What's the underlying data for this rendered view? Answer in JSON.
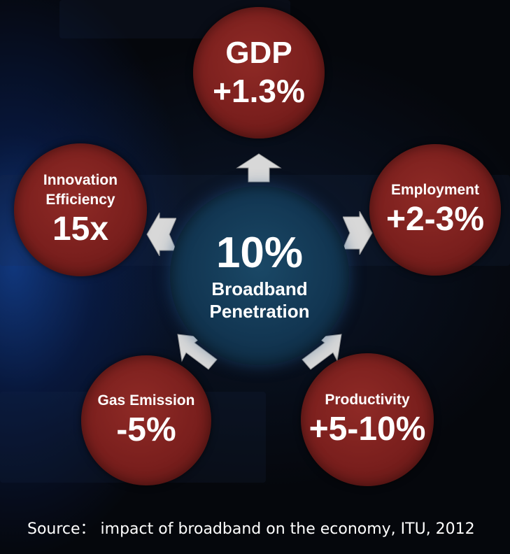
{
  "center": {
    "value": "10%",
    "label_line1": "Broadband",
    "label_line2": "Penetration"
  },
  "nodes": [
    {
      "key": "gdp",
      "label": "GDP",
      "value": "+1.3%"
    },
    {
      "key": "employment",
      "label": "Employment",
      "value": "+2-3%"
    },
    {
      "key": "productivity",
      "label": "Productivity",
      "value": "+5-10%"
    },
    {
      "key": "gas",
      "label": "Gas Emission",
      "value": "-5%"
    },
    {
      "key": "innovation",
      "label_line1": "Innovation",
      "label_line2": "Efficiency",
      "value": "15x"
    }
  ],
  "source": "Source： impact of broadband on the economy, ITU, 2012",
  "colors": {
    "node_fill": "#7a1f1d",
    "center_fill": "#123652",
    "arrow_fill": "#d8d8d8",
    "text": "#ffffff"
  }
}
